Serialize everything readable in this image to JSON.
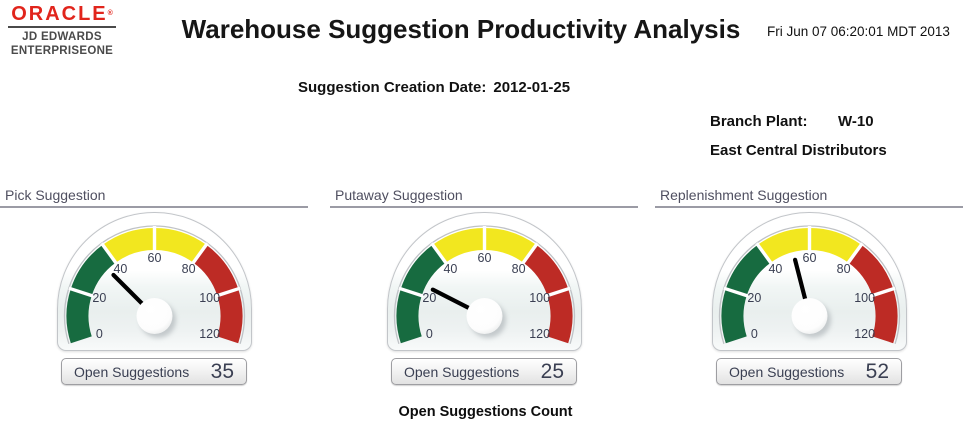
{
  "header": {
    "logo": {
      "brand": "ORACLE",
      "registered_mark": "®",
      "division_line1": "JD EDWARDS",
      "division_line2": "ENTERPRISEONE"
    },
    "title": "Warehouse Suggestion Productivity Analysis",
    "timestamp": "Fri Jun 07 06:20:01 MDT 2013"
  },
  "report_params": {
    "creation_date_label": "Suggestion Creation Date:",
    "creation_date_value": "2012-01-25",
    "branch_plant_label": "Branch Plant:",
    "branch_plant_code": "W-10",
    "branch_plant_name": "East Central Distributors"
  },
  "caption": "Open Suggestions Count",
  "colors": {
    "oracle_red": "#E1251C",
    "panel_title": "#4F4F60",
    "dial_text": "#3A3F52",
    "green_zone": "#176B40",
    "yellow_zone": "#F2E71F",
    "red_zone": "#BD2B25"
  },
  "chart_data": [
    {
      "type": "gauge",
      "title": "Pick Suggestion",
      "value": 35,
      "min": 0,
      "max": 120,
      "ticks": [
        0,
        20,
        40,
        60,
        80,
        100,
        120
      ],
      "zones": [
        {
          "from": 0,
          "to": 40,
          "color": "#176B40",
          "label": "green"
        },
        {
          "from": 40,
          "to": 80,
          "color": "#F2E71F",
          "label": "yellow"
        },
        {
          "from": 80,
          "to": 120,
          "color": "#BD2B25",
          "label": "red"
        }
      ],
      "counter_label": "Open Suggestions",
      "counter_value": "35"
    },
    {
      "type": "gauge",
      "title": "Putaway Suggestion",
      "value": 25,
      "min": 0,
      "max": 120,
      "ticks": [
        0,
        20,
        40,
        60,
        80,
        100,
        120
      ],
      "zones": [
        {
          "from": 0,
          "to": 40,
          "color": "#176B40",
          "label": "green"
        },
        {
          "from": 40,
          "to": 80,
          "color": "#F2E71F",
          "label": "yellow"
        },
        {
          "from": 80,
          "to": 120,
          "color": "#BD2B25",
          "label": "red"
        }
      ],
      "counter_label": "Open Suggestions",
      "counter_value": "25"
    },
    {
      "type": "gauge",
      "title": "Replenishment Suggestion",
      "value": 52,
      "min": 0,
      "max": 120,
      "ticks": [
        0,
        20,
        40,
        60,
        80,
        100,
        120
      ],
      "zones": [
        {
          "from": 0,
          "to": 40,
          "color": "#176B40",
          "label": "green"
        },
        {
          "from": 40,
          "to": 80,
          "color": "#F2E71F",
          "label": "yellow"
        },
        {
          "from": 80,
          "to": 120,
          "color": "#BD2B25",
          "label": "red"
        }
      ],
      "counter_label": "Open Suggestions",
      "counter_value": "52"
    }
  ]
}
